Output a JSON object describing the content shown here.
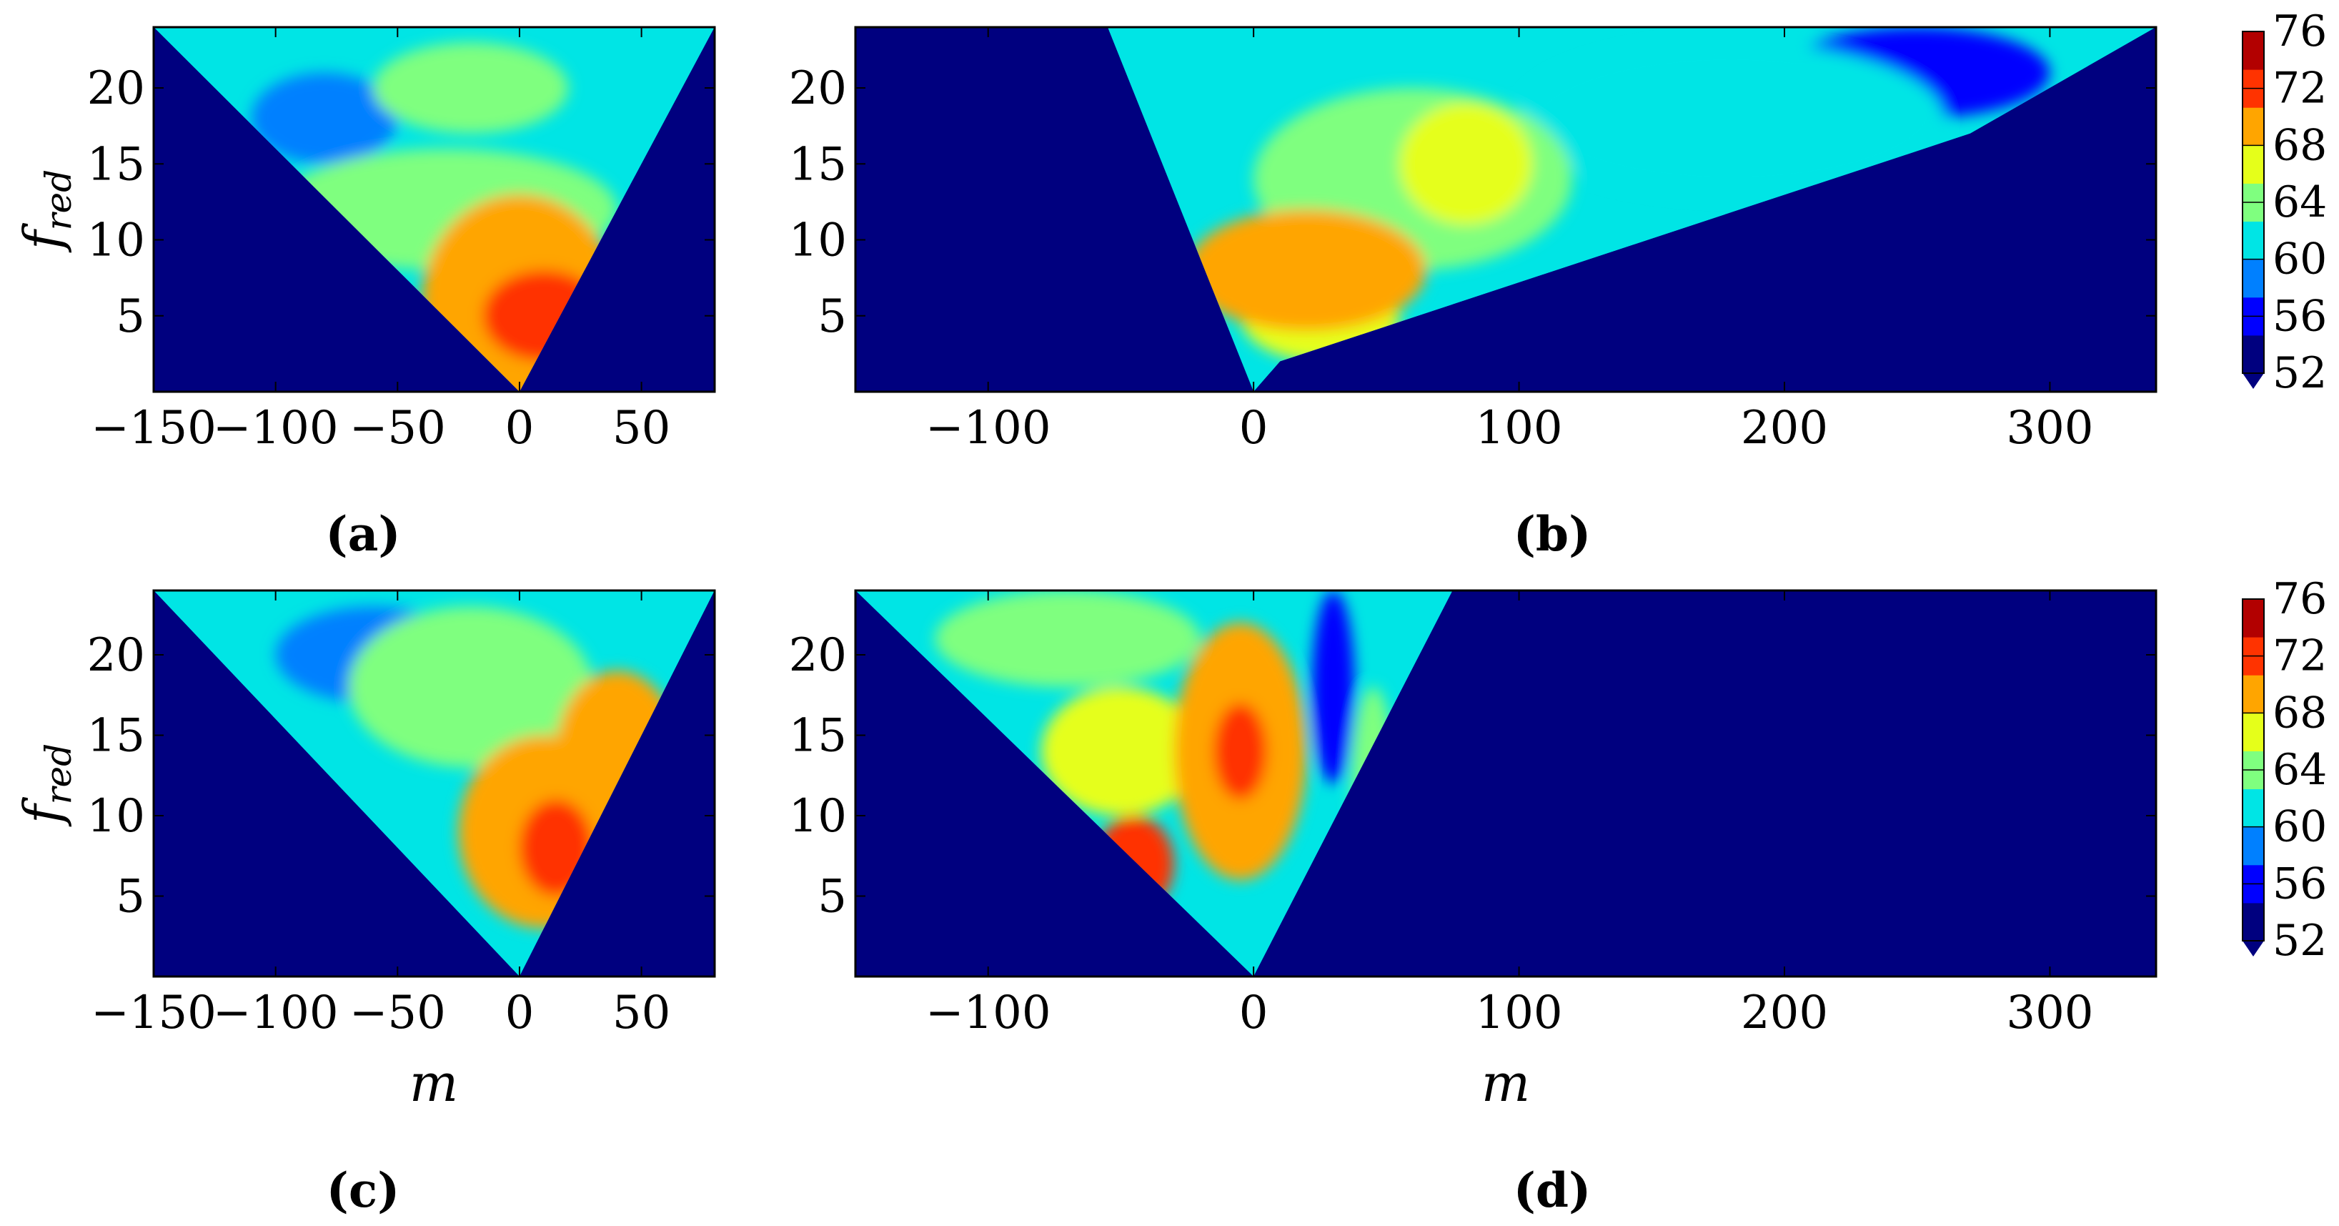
{
  "chart_data": [
    {
      "panel": "a",
      "panel_label": "(a)",
      "type": "heatmap",
      "xlabel": "",
      "ylabel": "f_red",
      "xlim": [
        -150,
        80
      ],
      "ylim": [
        0,
        24
      ],
      "xticks": [
        {
          "value": -150,
          "label": "−150"
        },
        {
          "value": -100,
          "label": "−100"
        },
        {
          "value": -50,
          "label": "−50"
        },
        {
          "value": 0,
          "label": "0"
        },
        {
          "value": 50,
          "label": "50"
        }
      ],
      "yticks": [
        {
          "value": 5,
          "label": "5"
        },
        {
          "value": 10,
          "label": "10"
        },
        {
          "value": 15,
          "label": "15"
        },
        {
          "value": 20,
          "label": "20"
        }
      ],
      "wedge": [
        [
          -150,
          24
        ],
        [
          80,
          24
        ],
        [
          0,
          0
        ]
      ],
      "blobs": [
        {
          "x": 0,
          "y": 6,
          "rx": 40,
          "ry": 7,
          "level": 72
        },
        {
          "x": 10,
          "y": 5,
          "rx": 25,
          "ry": 3,
          "level": 76
        },
        {
          "x": -30,
          "y": 12,
          "rx": 70,
          "ry": 4,
          "level": 64
        },
        {
          "x": -20,
          "y": 20,
          "rx": 40,
          "ry": 3,
          "level": 64
        },
        {
          "x": -80,
          "y": 18,
          "rx": 30,
          "ry": 3,
          "level": 56
        },
        {
          "x": -70,
          "y": 17,
          "rx": 10,
          "ry": 2,
          "level": 52
        }
      ]
    },
    {
      "panel": "b",
      "panel_label": "(b)",
      "type": "heatmap",
      "xlabel": "",
      "ylabel": "",
      "xlim": [
        -150,
        340
      ],
      "ylim": [
        0,
        24
      ],
      "xticks": [
        {
          "value": -100,
          "label": "−100"
        },
        {
          "value": 0,
          "label": "0"
        },
        {
          "value": 100,
          "label": "100"
        },
        {
          "value": 200,
          "label": "200"
        },
        {
          "value": 300,
          "label": "300"
        }
      ],
      "yticks": [
        {
          "value": 5,
          "label": "5"
        },
        {
          "value": 10,
          "label": "10"
        },
        {
          "value": 15,
          "label": "15"
        },
        {
          "value": 20,
          "label": "20"
        }
      ],
      "wedge": [
        [
          -55,
          24
        ],
        [
          340,
          24
        ],
        [
          270,
          17
        ],
        [
          10,
          2
        ],
        [
          0,
          0
        ]
      ],
      "blobs": [
        {
          "x": 20,
          "y": 8,
          "rx": 45,
          "ry": 4,
          "level": 72
        },
        {
          "x": 25,
          "y": 5,
          "rx": 30,
          "ry": 3,
          "level": 68
        },
        {
          "x": 60,
          "y": 14,
          "rx": 60,
          "ry": 6,
          "level": 64
        },
        {
          "x": 80,
          "y": 15,
          "rx": 25,
          "ry": 4,
          "level": 68
        },
        {
          "x": 180,
          "y": 18,
          "rx": 80,
          "ry": 5,
          "level": 60
        },
        {
          "x": 250,
          "y": 21,
          "rx": 50,
          "ry": 3,
          "level": 52
        }
      ]
    },
    {
      "panel": "c",
      "panel_label": "(c)",
      "type": "heatmap",
      "xlabel": "m",
      "ylabel": "f_red",
      "xlim": [
        -150,
        80
      ],
      "ylim": [
        0,
        24
      ],
      "xticks": [
        {
          "value": -150,
          "label": "−150"
        },
        {
          "value": -100,
          "label": "−100"
        },
        {
          "value": -50,
          "label": "−50"
        },
        {
          "value": 0,
          "label": "0"
        },
        {
          "value": 50,
          "label": "50"
        }
      ],
      "yticks": [
        {
          "value": 5,
          "label": "5"
        },
        {
          "value": 10,
          "label": "10"
        },
        {
          "value": 15,
          "label": "15"
        },
        {
          "value": 20,
          "label": "20"
        }
      ],
      "wedge": [
        [
          -150,
          24
        ],
        [
          80,
          24
        ],
        [
          0,
          0
        ]
      ],
      "blobs": [
        {
          "x": 10,
          "y": 9,
          "rx": 35,
          "ry": 6,
          "level": 72
        },
        {
          "x": 15,
          "y": 8,
          "rx": 15,
          "ry": 3,
          "level": 76
        },
        {
          "x": 40,
          "y": 14,
          "rx": 25,
          "ry": 5,
          "level": 72
        },
        {
          "x": -20,
          "y": 18,
          "rx": 50,
          "ry": 5,
          "level": 64
        },
        {
          "x": -60,
          "y": 20,
          "rx": 40,
          "ry": 3,
          "level": 56
        }
      ]
    },
    {
      "panel": "d",
      "panel_label": "(d)",
      "type": "heatmap",
      "xlabel": "m",
      "ylabel": "",
      "xlim": [
        -150,
        340
      ],
      "ylim": [
        0,
        24
      ],
      "xticks": [
        {
          "value": -100,
          "label": "−100"
        },
        {
          "value": 0,
          "label": "0"
        },
        {
          "value": 100,
          "label": "100"
        },
        {
          "value": 200,
          "label": "200"
        },
        {
          "value": 300,
          "label": "300"
        }
      ],
      "yticks": [
        {
          "value": 5,
          "label": "5"
        },
        {
          "value": 10,
          "label": "10"
        },
        {
          "value": 15,
          "label": "15"
        },
        {
          "value": 20,
          "label": "20"
        }
      ],
      "wedge": [
        [
          -150,
          24
        ],
        [
          75,
          24
        ],
        [
          0,
          0
        ]
      ],
      "blobs": [
        {
          "x": -5,
          "y": 14,
          "rx": 25,
          "ry": 8,
          "level": 72
        },
        {
          "x": -5,
          "y": 14,
          "rx": 10,
          "ry": 3,
          "level": 76
        },
        {
          "x": -45,
          "y": 7,
          "rx": 15,
          "ry": 3,
          "level": 76
        },
        {
          "x": -50,
          "y": 14,
          "rx": 30,
          "ry": 4,
          "level": 68
        },
        {
          "x": -70,
          "y": 21,
          "rx": 50,
          "ry": 3,
          "level": 64
        },
        {
          "x": 30,
          "y": 18,
          "rx": 8,
          "ry": 6,
          "level": 52
        },
        {
          "x": 45,
          "y": 12,
          "rx": 8,
          "ry": 6,
          "level": 64
        }
      ]
    }
  ],
  "colorbar": {
    "levels": [
      52,
      56,
      60,
      64,
      68,
      72,
      76
    ],
    "labels": [
      "76",
      "72",
      "68",
      "64",
      "60",
      "56",
      "52"
    ],
    "colors": [
      "#00007f",
      "#0000ff",
      "#0080ff",
      "#00e5e5",
      "#7fff7f",
      "#e5ff1a",
      "#ffa500",
      "#ff3300",
      "#b20000"
    ]
  },
  "ylabel_text": {
    "base": "f",
    "sub": "red"
  },
  "xlabel_text": "m"
}
